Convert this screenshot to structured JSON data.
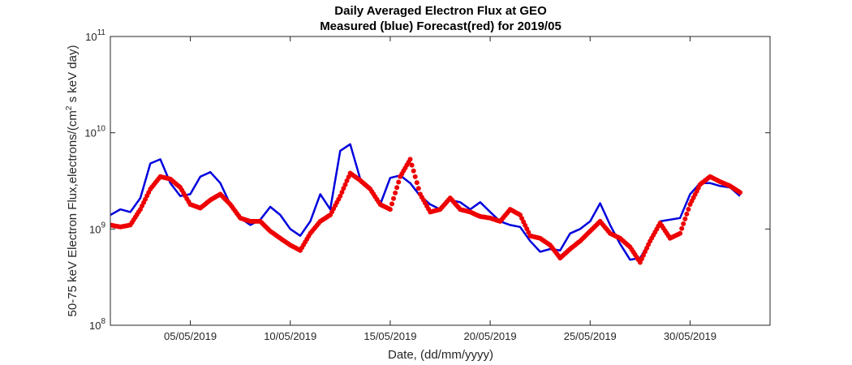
{
  "chart_data": {
    "type": "line",
    "title": [
      "Daily Averaged Electron Flux at GEO",
      "Measured (blue) Forecast(red) for 2019/05"
    ],
    "xlabel": "Date, (dd/mm/yyyy)",
    "ylabel": "50-75 keV Electron Flux,electrons/(cm² s keV day)",
    "ylabel_parts": [
      "50-75 keV Electron Flux,electrons/(cm",
      "2",
      " s keV day)"
    ],
    "yscale": "log",
    "ylim": [
      100000000,
      100000000000
    ],
    "xlim": [
      "01/05/2019",
      "03/06/2019"
    ],
    "grid": false,
    "x_ticks": [
      "05/05/2019",
      "10/05/2019",
      "15/05/2019",
      "20/05/2019",
      "25/05/2019",
      "30/05/2019"
    ],
    "y_ticks": [
      {
        "value": 100000000,
        "base": "10",
        "exp": "8"
      },
      {
        "value": 1000000000,
        "base": "10",
        "exp": "9"
      },
      {
        "value": 10000000000,
        "base": "10",
        "exp": "10"
      },
      {
        "value": 100000000000,
        "base": "10",
        "exp": "11"
      }
    ],
    "series": [
      {
        "color": "#0000dd",
        "style": "line",
        "points": [
          [
            "01/05/2019 00:00",
            1400000000.0
          ],
          [
            "01/05/2019 12:00",
            1600000000.0
          ],
          [
            "02/05/2019 00:00",
            1500000000.0
          ],
          [
            "02/05/2019 12:00",
            2100000000.0
          ],
          [
            "03/05/2019 00:00",
            4800000000.0
          ],
          [
            "03/05/2019 12:00",
            5300000000.0
          ],
          [
            "04/05/2019 00:00",
            3000000000.0
          ],
          [
            "04/05/2019 12:00",
            2200000000.0
          ],
          [
            "05/05/2019 00:00",
            2300000000.0
          ],
          [
            "05/05/2019 12:00",
            3500000000.0
          ],
          [
            "06/05/2019 00:00",
            3900000000.0
          ],
          [
            "06/05/2019 12:00",
            3000000000.0
          ],
          [
            "07/05/2019 00:00",
            1800000000.0
          ],
          [
            "07/05/2019 12:00",
            1300000000.0
          ],
          [
            "08/05/2019 00:00",
            1100000000.0
          ],
          [
            "08/05/2019 12:00",
            1250000000.0
          ],
          [
            "09/05/2019 00:00",
            1700000000.0
          ],
          [
            "09/05/2019 12:00",
            1400000000.0
          ],
          [
            "10/05/2019 00:00",
            1000000000.0
          ],
          [
            "10/05/2019 12:00",
            850000000.0
          ],
          [
            "11/05/2019 00:00",
            1200000000.0
          ],
          [
            "11/05/2019 12:00",
            2300000000.0
          ],
          [
            "12/05/2019 00:00",
            1600000000.0
          ],
          [
            "12/05/2019 12:00",
            6500000000.0
          ],
          [
            "13/05/2019 00:00",
            7600000000.0
          ],
          [
            "13/05/2019 12:00",
            3300000000.0
          ],
          [
            "14/05/2019 00:00",
            2700000000.0
          ],
          [
            "14/05/2019 12:00",
            1800000000.0
          ],
          [
            "15/05/2019 00:00",
            3400000000.0
          ],
          [
            "15/05/2019 12:00",
            3600000000.0
          ],
          [
            "16/05/2019 00:00",
            3000000000.0
          ],
          [
            "16/05/2019 12:00",
            2200000000.0
          ],
          [
            "17/05/2019 00:00",
            1800000000.0
          ],
          [
            "17/05/2019 12:00",
            1600000000.0
          ],
          [
            "18/05/2019 00:00",
            2000000000.0
          ],
          [
            "18/05/2019 12:00",
            1900000000.0
          ],
          [
            "19/05/2019 00:00",
            1600000000.0
          ],
          [
            "19/05/2019 12:00",
            1900000000.0
          ],
          [
            "20/05/2019 00:00",
            1500000000.0
          ],
          [
            "20/05/2019 12:00",
            1200000000.0
          ],
          [
            "21/05/2019 00:00",
            1100000000.0
          ],
          [
            "21/05/2019 12:00",
            1050000000.0
          ],
          [
            "22/05/2019 00:00",
            750000000.0
          ],
          [
            "22/05/2019 12:00",
            580000000.0
          ],
          [
            "23/05/2019 00:00",
            620000000.0
          ],
          [
            "23/05/2019 12:00",
            600000000.0
          ],
          [
            "24/05/2019 00:00",
            900000000.0
          ],
          [
            "24/05/2019 12:00",
            1000000000.0
          ],
          [
            "25/05/2019 00:00",
            1200000000.0
          ],
          [
            "25/05/2019 12:00",
            1850000000.0
          ],
          [
            "26/05/2019 00:00",
            1100000000.0
          ],
          [
            "26/05/2019 12:00",
            700000000.0
          ],
          [
            "27/05/2019 00:00",
            480000000.0
          ],
          [
            "27/05/2019 12:00",
            500000000.0
          ],
          [
            "28/05/2019 00:00",
            750000000.0
          ],
          [
            "28/05/2019 12:00",
            1200000000.0
          ],
          [
            "29/05/2019 00:00",
            1250000000.0
          ],
          [
            "29/05/2019 12:00",
            1300000000.0
          ],
          [
            "30/05/2019 00:00",
            2300000000.0
          ],
          [
            "30/05/2019 12:00",
            3000000000.0
          ],
          [
            "31/05/2019 00:00",
            3000000000.0
          ],
          [
            "31/05/2019 12:00",
            2800000000.0
          ],
          [
            "01/06/2019 00:00",
            2700000000.0
          ],
          [
            "01/06/2019 12:00",
            2200000000.0
          ]
        ]
      },
      {
        "color": "#ee0000",
        "style": "dots",
        "points": [
          [
            "01/05/2019 00:00",
            1100000000.0
          ],
          [
            "01/05/2019 12:00",
            1050000000.0
          ],
          [
            "02/05/2019 00:00",
            1100000000.0
          ],
          [
            "02/05/2019 12:00",
            1600000000.0
          ],
          [
            "03/05/2019 00:00",
            2600000000.0
          ],
          [
            "03/05/2019 12:00",
            3500000000.0
          ],
          [
            "04/05/2019 00:00",
            3300000000.0
          ],
          [
            "04/05/2019 12:00",
            2700000000.0
          ],
          [
            "05/05/2019 00:00",
            1800000000.0
          ],
          [
            "05/05/2019 12:00",
            1650000000.0
          ],
          [
            "06/05/2019 00:00",
            2000000000.0
          ],
          [
            "06/05/2019 12:00",
            2300000000.0
          ],
          [
            "07/05/2019 00:00",
            1800000000.0
          ],
          [
            "07/05/2019 12:00",
            1300000000.0
          ],
          [
            "08/05/2019 00:00",
            1200000000.0
          ],
          [
            "08/05/2019 12:00",
            1200000000.0
          ],
          [
            "09/05/2019 00:00",
            950000000.0
          ],
          [
            "09/05/2019 12:00",
            800000000.0
          ],
          [
            "10/05/2019 00:00",
            680000000.0
          ],
          [
            "10/05/2019 12:00",
            600000000.0
          ],
          [
            "11/05/2019 00:00",
            900000000.0
          ],
          [
            "11/05/2019 12:00",
            1200000000.0
          ],
          [
            "12/05/2019 00:00",
            1400000000.0
          ],
          [
            "12/05/2019 12:00",
            2200000000.0
          ],
          [
            "13/05/2019 00:00",
            3800000000.0
          ],
          [
            "13/05/2019 12:00",
            3200000000.0
          ],
          [
            "14/05/2019 00:00",
            2600000000.0
          ],
          [
            "14/05/2019 12:00",
            1800000000.0
          ],
          [
            "15/05/2019 00:00",
            1600000000.0
          ],
          [
            "15/05/2019 12:00",
            3500000000.0
          ],
          [
            "16/05/2019 00:00",
            5300000000.0
          ],
          [
            "16/05/2019 12:00",
            2300000000.0
          ],
          [
            "17/05/2019 00:00",
            1500000000.0
          ],
          [
            "17/05/2019 12:00",
            1600000000.0
          ],
          [
            "18/05/2019 00:00",
            2100000000.0
          ],
          [
            "18/05/2019 12:00",
            1600000000.0
          ],
          [
            "19/05/2019 00:00",
            1500000000.0
          ],
          [
            "19/05/2019 12:00",
            1350000000.0
          ],
          [
            "20/05/2019 00:00",
            1300000000.0
          ],
          [
            "20/05/2019 12:00",
            1200000000.0
          ],
          [
            "21/05/2019 00:00",
            1600000000.0
          ],
          [
            "21/05/2019 12:00",
            1400000000.0
          ],
          [
            "22/05/2019 00:00",
            850000000.0
          ],
          [
            "22/05/2019 12:00",
            800000000.0
          ],
          [
            "23/05/2019 00:00",
            680000000.0
          ],
          [
            "23/05/2019 12:00",
            500000000.0
          ],
          [
            "24/05/2019 00:00",
            620000000.0
          ],
          [
            "24/05/2019 12:00",
            750000000.0
          ],
          [
            "25/05/2019 00:00",
            950000000.0
          ],
          [
            "25/05/2019 12:00",
            1200000000.0
          ],
          [
            "26/05/2019 00:00",
            900000000.0
          ],
          [
            "26/05/2019 12:00",
            800000000.0
          ],
          [
            "27/05/2019 00:00",
            650000000.0
          ],
          [
            "27/05/2019 12:00",
            450000000.0
          ],
          [
            "28/05/2019 00:00",
            750000000.0
          ],
          [
            "28/05/2019 12:00",
            1150000000.0
          ],
          [
            "29/05/2019 00:00",
            800000000.0
          ],
          [
            "29/05/2019 12:00",
            900000000.0
          ],
          [
            "30/05/2019 00:00",
            1800000000.0
          ],
          [
            "30/05/2019 12:00",
            2900000000.0
          ],
          [
            "31/05/2019 00:00",
            3500000000.0
          ],
          [
            "31/05/2019 12:00",
            3100000000.0
          ],
          [
            "01/06/2019 00:00",
            2800000000.0
          ],
          [
            "01/06/2019 12:00",
            2400000000.0
          ]
        ]
      }
    ]
  }
}
